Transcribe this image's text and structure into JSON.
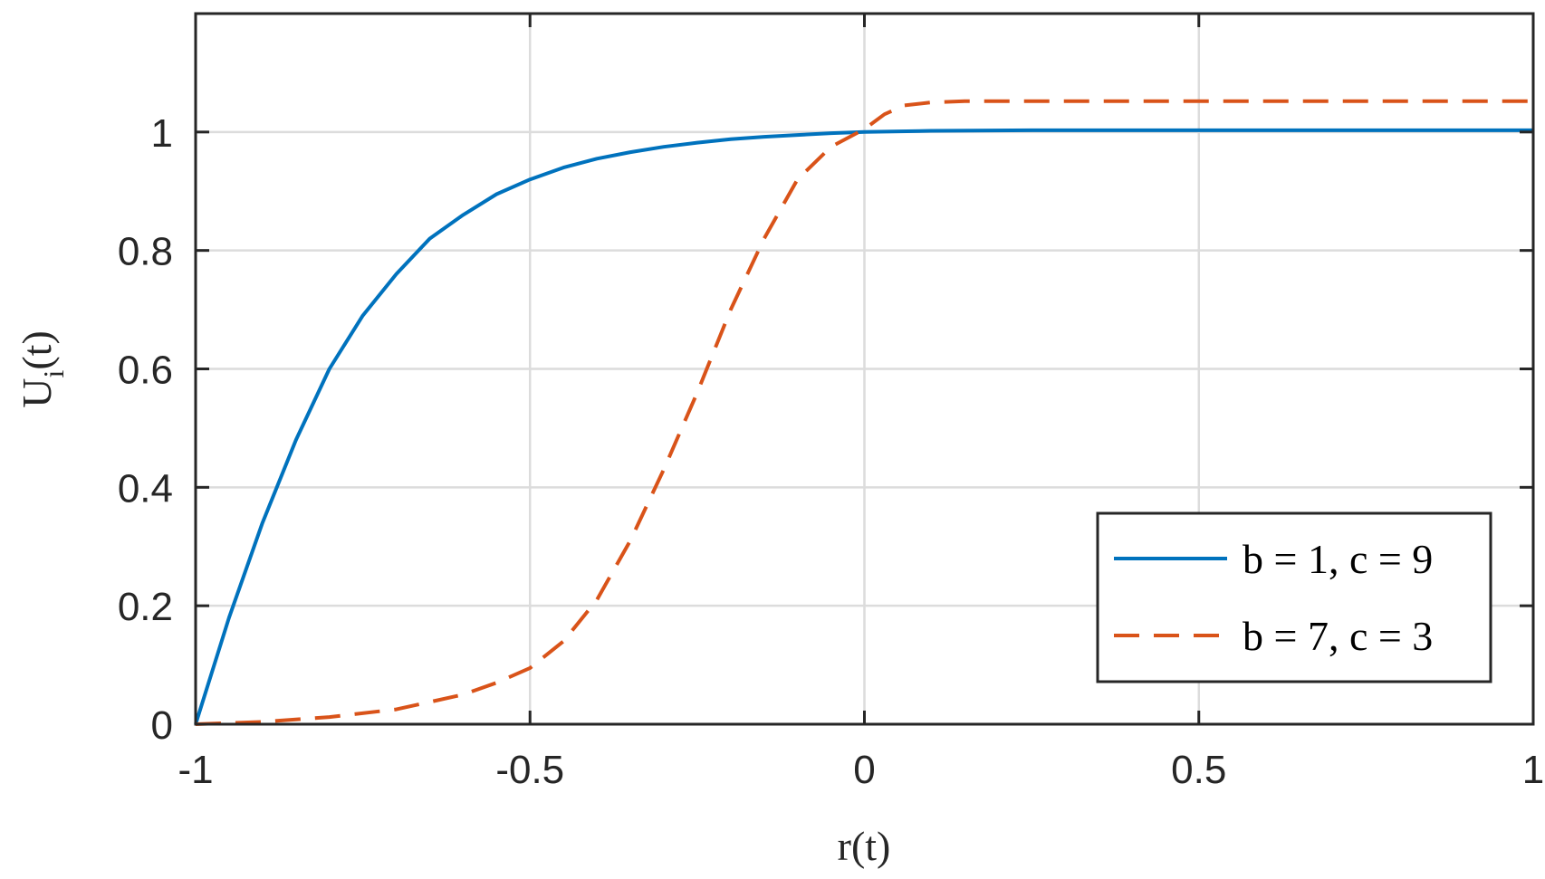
{
  "chart_data": {
    "type": "line",
    "xlabel": "r(t)",
    "ylabel_main": "U",
    "ylabel_sub": "i",
    "ylabel_tail": "(t)",
    "xlim": [
      -1,
      1
    ],
    "ylim": [
      0,
      1.2
    ],
    "xticks": [
      -1,
      -0.5,
      0,
      0.5,
      1
    ],
    "xtick_labels": [
      "-1",
      "-0.5",
      "0",
      "0.5",
      "1"
    ],
    "yticks": [
      0,
      0.2,
      0.4,
      0.6,
      0.8,
      1
    ],
    "ytick_labels": [
      "0",
      "0.2",
      "0.4",
      "0.6",
      "0.8",
      "1"
    ],
    "grid": true,
    "legend_position": "bottom-right",
    "series": [
      {
        "name": "b = 1, c = 9",
        "color": "#0072BD",
        "dash": "solid",
        "x": [
          -1.0,
          -0.95,
          -0.9,
          -0.85,
          -0.8,
          -0.75,
          -0.7,
          -0.65,
          -0.6,
          -0.55,
          -0.5,
          -0.45,
          -0.4,
          -0.35,
          -0.3,
          -0.25,
          -0.2,
          -0.15,
          -0.1,
          -0.05,
          0.0,
          0.1,
          0.25,
          0.5,
          0.75,
          1.0
        ],
        "y": [
          0.0,
          0.18,
          0.34,
          0.48,
          0.6,
          0.69,
          0.76,
          0.82,
          0.86,
          0.895,
          0.92,
          0.94,
          0.955,
          0.966,
          0.975,
          0.982,
          0.988,
          0.992,
          0.995,
          0.998,
          1.0,
          1.002,
          1.003,
          1.003,
          1.003,
          1.003
        ]
      },
      {
        "name": "b = 7, c = 3",
        "color": "#D95319",
        "dash": "dashed",
        "x": [
          -1.0,
          -0.9,
          -0.8,
          -0.7,
          -0.6,
          -0.55,
          -0.5,
          -0.45,
          -0.4,
          -0.35,
          -0.3,
          -0.25,
          -0.2,
          -0.15,
          -0.1,
          -0.05,
          0.0,
          0.03,
          0.06,
          0.1,
          0.15,
          0.25,
          0.5,
          0.75,
          1.0
        ],
        "y": [
          0.0,
          0.004,
          0.012,
          0.025,
          0.05,
          0.07,
          0.095,
          0.14,
          0.21,
          0.31,
          0.43,
          0.56,
          0.7,
          0.82,
          0.92,
          0.975,
          1.005,
          1.03,
          1.045,
          1.05,
          1.052,
          1.052,
          1.052,
          1.052,
          1.052
        ]
      }
    ]
  }
}
